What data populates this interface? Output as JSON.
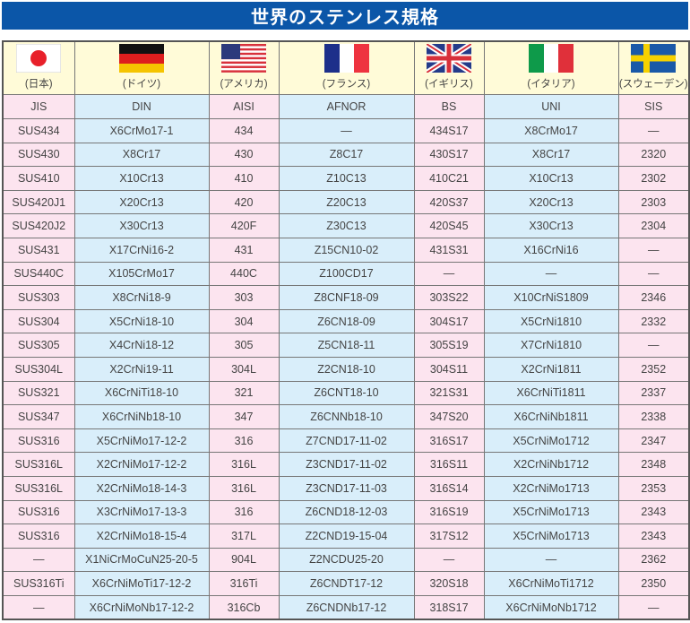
{
  "title": "世界のステンレス規格",
  "colors": {
    "title_bg": "#0b56a8",
    "pink": "#fce4ef",
    "blue": "#d9eefa",
    "header_bg": "#fffbd8"
  },
  "countries": [
    {
      "name": "(日本)",
      "flag": "japan-flag-icon",
      "standard": "JIS"
    },
    {
      "name": "(ドイツ)",
      "flag": "germany-flag-icon",
      "standard": "DIN"
    },
    {
      "name": "(アメリカ)",
      "flag": "usa-flag-icon",
      "standard": "AISI"
    },
    {
      "name": "(フランス)",
      "flag": "france-flag-icon",
      "standard": "AFNOR"
    },
    {
      "name": "(イギリス)",
      "flag": "uk-flag-icon",
      "standard": "BS"
    },
    {
      "name": "(イタリア)",
      "flag": "italy-flag-icon",
      "standard": "UNI"
    },
    {
      "name": "(スウェーデン)",
      "flag": "sweden-flag-icon",
      "standard": "SIS"
    }
  ],
  "rows": [
    [
      "SUS434",
      "X6CrMo17-1",
      "434",
      "—",
      "434S17",
      "X8CrMo17",
      "—"
    ],
    [
      "SUS430",
      "X8Cr17",
      "430",
      "Z8C17",
      "430S17",
      "X8Cr17",
      "2320"
    ],
    [
      "SUS410",
      "X10Cr13",
      "410",
      "Z10C13",
      "410C21",
      "X10Cr13",
      "2302"
    ],
    [
      "SUS420J1",
      "X20Cr13",
      "420",
      "Z20C13",
      "420S37",
      "X20Cr13",
      "2303"
    ],
    [
      "SUS420J2",
      "X30Cr13",
      "420F",
      "Z30C13",
      "420S45",
      "X30Cr13",
      "2304"
    ],
    [
      "SUS431",
      "X17CrNi16-2",
      "431",
      "Z15CN10-02",
      "431S31",
      "X16CrNi16",
      "—"
    ],
    [
      "SUS440C",
      "X105CrMo17",
      "440C",
      "Z100CD17",
      "—",
      "—",
      "—"
    ],
    [
      "SUS303",
      "X8CrNi18-9",
      "303",
      "Z8CNF18-09",
      "303S22",
      "X10CrNiS1809",
      "2346"
    ],
    [
      "SUS304",
      "X5CrNi18-10",
      "304",
      "Z6CN18-09",
      "304S17",
      "X5CrNi1810",
      "2332"
    ],
    [
      "SUS305",
      "X4CrNi18-12",
      "305",
      "Z5CN18-11",
      "305S19",
      "X7CrNi1810",
      "—"
    ],
    [
      "SUS304L",
      "X2CrNi19-11",
      "304L",
      "Z2CN18-10",
      "304S11",
      "X2CrNi1811",
      "2352"
    ],
    [
      "SUS321",
      "X6CrNiTi18-10",
      "321",
      "Z6CNT18-10",
      "321S31",
      "X6CrNiTi1811",
      "2337"
    ],
    [
      "SUS347",
      "X6CrNiNb18-10",
      "347",
      "Z6CNNb18-10",
      "347S20",
      "X6CrNiNb1811",
      "2338"
    ],
    [
      "SUS316",
      "X5CrNiMo17-12-2",
      "316",
      "Z7CND17-11-02",
      "316S17",
      "X5CrNiMo1712",
      "2347"
    ],
    [
      "SUS316L",
      "X2CrNiMo17-12-2",
      "316L",
      "Z3CND17-11-02",
      "316S11",
      "X2CrNiNb1712",
      "2348"
    ],
    [
      "SUS316L",
      "X2CrNiMo18-14-3",
      "316L",
      "Z3CND17-11-03",
      "316S14",
      "X2CrNiMo1713",
      "2353"
    ],
    [
      "SUS316",
      "X3CrNiMo17-13-3",
      "316",
      "Z6CND18-12-03",
      "316S19",
      "X5CrNiMo1713",
      "2343"
    ],
    [
      "SUS316",
      "X2CrNiMo18-15-4",
      "317L",
      "Z2CND19-15-04",
      "317S12",
      "X5CrNiMo1713",
      "2343"
    ],
    [
      "—",
      "X1NiCrMoCuN25-20-5",
      "904L",
      "Z2NCDU25-20",
      "—",
      "—",
      "2362"
    ],
    [
      "SUS316Ti",
      "X6CrNiMoTi17-12-2",
      "316Ti",
      "Z6CNDT17-12",
      "320S18",
      "X6CrNiMoTi1712",
      "2350"
    ],
    [
      "—",
      "X6CrNiMoNb17-12-2",
      "316Cb",
      "Z6CNDNb17-12",
      "318S17",
      "X6CrNiMoNb1712",
      "—"
    ]
  ]
}
